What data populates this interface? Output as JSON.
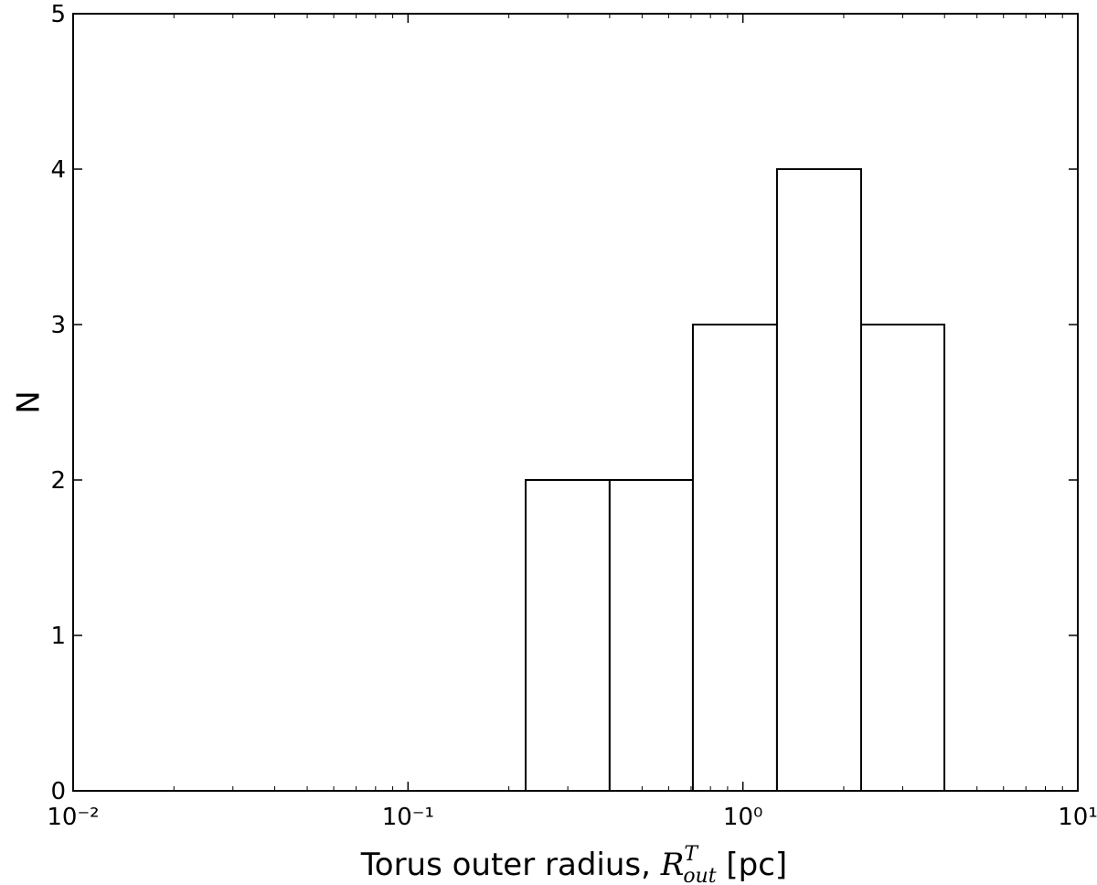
{
  "chart_data": {
    "type": "histogram",
    "xlabel": {
      "text": "Torus outer radius, ",
      "symbol": "R",
      "sub": "out",
      "sup": "T",
      "unit": " [pc]"
    },
    "ylabel": "N",
    "bins": [
      0.2245,
      0.4,
      0.709,
      1.264,
      2.254,
      3.996
    ],
    "counts": [
      2,
      2,
      3,
      4,
      3
    ],
    "color": "#ffffff",
    "edgecolor": "#000000",
    "xscale": "log",
    "xlim": [
      0.01,
      10
    ],
    "ylim": [
      0,
      5
    ],
    "xticks": [
      {
        "value": 0.01,
        "label": "10⁻²"
      },
      {
        "value": 0.1,
        "label": "10⁻¹"
      },
      {
        "value": 1,
        "label": "10⁰"
      },
      {
        "value": 10,
        "label": "10¹"
      }
    ],
    "xminorticks": [
      0.02,
      0.03,
      0.04,
      0.05,
      0.06,
      0.07,
      0.08,
      0.09,
      0.2,
      0.3,
      0.4,
      0.5,
      0.6,
      0.7,
      0.8,
      0.9,
      2,
      3,
      4,
      5,
      6,
      7,
      8,
      9
    ],
    "yticks": [
      0,
      1,
      2,
      3,
      4,
      5
    ],
    "grid": false
  }
}
